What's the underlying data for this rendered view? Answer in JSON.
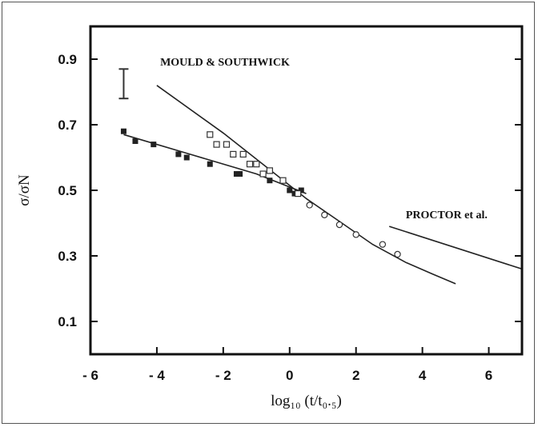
{
  "chart_data": {
    "type": "scatter",
    "xlabel": "log₁₀ (t/t₀.₅)",
    "ylabel": "σ/σN",
    "xlim": [
      -6,
      7
    ],
    "ylim": [
      0,
      1.0
    ],
    "x_ticks": [
      "- 6",
      "- 4",
      "- 2",
      "0",
      "2",
      "4",
      "6"
    ],
    "x_tick_values": [
      -6,
      -4,
      -2,
      0,
      2,
      4,
      6
    ],
    "y_ticks": [
      "0.9",
      "0.7",
      "0.5",
      "0.3",
      "0.1"
    ],
    "y_tick_values": [
      0.9,
      0.7,
      0.5,
      0.3,
      0.1
    ],
    "error_bar": {
      "x": -5,
      "y_low": 0.78,
      "y_high": 0.87
    },
    "series": [
      {
        "marker": "filled-square",
        "points": [
          {
            "x": -5.0,
            "y": 0.68
          },
          {
            "x": -4.65,
            "y": 0.65
          },
          {
            "x": -4.1,
            "y": 0.64
          },
          {
            "x": -3.35,
            "y": 0.61
          },
          {
            "x": -3.1,
            "y": 0.6
          },
          {
            "x": -2.4,
            "y": 0.58
          },
          {
            "x": -1.6,
            "y": 0.55
          },
          {
            "x": -1.5,
            "y": 0.55
          },
          {
            "x": -0.6,
            "y": 0.53
          },
          {
            "x": 0.0,
            "y": 0.5
          },
          {
            "x": 0.15,
            "y": 0.49
          },
          {
            "x": 0.35,
            "y": 0.5
          }
        ]
      },
      {
        "marker": "open-square",
        "points": [
          {
            "x": -2.4,
            "y": 0.67
          },
          {
            "x": -2.2,
            "y": 0.64
          },
          {
            "x": -1.9,
            "y": 0.64
          },
          {
            "x": -1.7,
            "y": 0.61
          },
          {
            "x": -1.4,
            "y": 0.61
          },
          {
            "x": -1.2,
            "y": 0.58
          },
          {
            "x": -1.0,
            "y": 0.58
          },
          {
            "x": -0.8,
            "y": 0.55
          },
          {
            "x": -0.6,
            "y": 0.56
          },
          {
            "x": -0.2,
            "y": 0.53
          },
          {
            "x": 0.25,
            "y": 0.49
          }
        ]
      },
      {
        "marker": "open-circle",
        "points": [
          {
            "x": 0.6,
            "y": 0.455
          },
          {
            "x": 1.05,
            "y": 0.425
          },
          {
            "x": 1.5,
            "y": 0.395
          },
          {
            "x": 2.0,
            "y": 0.365
          },
          {
            "x": 2.8,
            "y": 0.335
          },
          {
            "x": 3.25,
            "y": 0.305
          }
        ]
      }
    ],
    "lines": [
      {
        "annotation": "MOULD & SOUTHWICK",
        "points": [
          [
            -4.0,
            0.82
          ],
          [
            -2.0,
            0.675
          ],
          [
            -0.5,
            0.555
          ],
          [
            0.5,
            0.475
          ],
          [
            1.5,
            0.405
          ],
          [
            2.5,
            0.335
          ],
          [
            3.5,
            0.28
          ],
          [
            4.3,
            0.245
          ],
          [
            5.0,
            0.215
          ]
        ]
      },
      {
        "annotation": "",
        "points": [
          [
            -5.0,
            0.67
          ],
          [
            -3.0,
            0.61
          ],
          [
            -1.0,
            0.55
          ],
          [
            0.5,
            0.49
          ]
        ]
      },
      {
        "annotation": "PROCTOR et al.",
        "points": [
          [
            3.0,
            0.39
          ],
          [
            7.0,
            0.26
          ]
        ]
      }
    ],
    "annotations": [
      {
        "text": "MOULD & SOUTHWICK",
        "x": -3.9,
        "y": 0.88
      },
      {
        "text": "PROCTOR et al.",
        "x": 3.5,
        "y": 0.415
      }
    ],
    "grid": false,
    "legend": "none"
  }
}
